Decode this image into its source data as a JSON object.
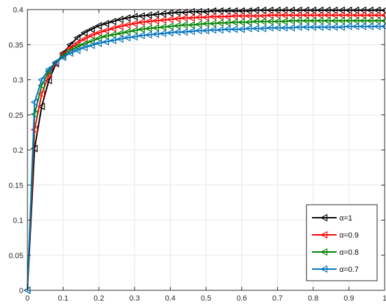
{
  "chart_data": {
    "type": "line",
    "title": "",
    "xlabel": "",
    "ylabel": "",
    "xlim": [
      0,
      1
    ],
    "ylim": [
      0,
      0.4
    ],
    "grid": true,
    "legend_placement": "bottom-right",
    "x_ticks": [
      "0",
      "0.1",
      "0.2",
      "0.3",
      "0.4",
      "0.5",
      "0.6",
      "0.7",
      "0.8",
      "0.9",
      "1"
    ],
    "y_ticks": [
      "0",
      "0.05",
      "0.1",
      "0.15",
      "0.2",
      "0.25",
      "0.3",
      "0.35",
      "0.4"
    ],
    "marker": "left-triangle",
    "series": [
      {
        "name": "α=1",
        "color": "#000000",
        "y_final": 0.399,
        "y_first": 0.202,
        "rate": 14
      },
      {
        "name": "α=0.9",
        "color": "#ff0000",
        "y_final": 0.392,
        "y_first": 0.229,
        "rate": 14
      },
      {
        "name": "α=0.8",
        "color": "#008000",
        "y_final": 0.384,
        "y_first": 0.251,
        "rate": 14
      },
      {
        "name": "α=0.7",
        "color": "#0072bd",
        "y_final": 0.376,
        "y_first": 0.268,
        "rate": 14
      }
    ],
    "x_points": [
      0,
      0.02,
      0.04,
      0.06,
      0.08,
      0.1,
      0.12,
      0.14,
      0.16,
      0.18,
      0.2,
      0.22,
      0.24,
      0.26,
      0.28,
      0.3,
      0.32,
      0.34,
      0.36,
      0.38,
      0.4,
      0.42,
      0.44,
      0.46,
      0.48,
      0.5,
      0.52,
      0.54,
      0.56,
      0.58,
      0.6,
      0.62,
      0.64,
      0.66,
      0.68,
      0.7,
      0.72,
      0.74,
      0.76,
      0.78,
      0.8,
      0.82,
      0.84,
      0.86,
      0.88,
      0.9,
      0.92,
      0.94,
      0.96,
      0.98,
      1.0
    ],
    "y_values": [
      [
        0,
        0.202,
        0.262,
        0.299,
        0.323,
        0.338,
        0.35,
        0.36,
        0.367,
        0.372,
        0.377,
        0.38,
        0.383,
        0.386,
        0.388,
        0.39,
        0.391,
        0.392,
        0.393,
        0.394,
        0.395,
        0.396,
        0.396,
        0.397,
        0.397,
        0.397,
        0.398,
        0.398,
        0.398,
        0.398,
        0.398,
        0.398,
        0.399,
        0.399,
        0.399,
        0.399,
        0.399,
        0.399,
        0.399,
        0.399,
        0.399,
        0.399,
        0.399,
        0.399,
        0.399,
        0.399,
        0.399,
        0.399,
        0.399,
        0.399,
        0.399
      ],
      [
        0,
        0.229,
        0.28,
        0.307,
        0.324,
        0.336,
        0.345,
        0.352,
        0.358,
        0.363,
        0.367,
        0.37,
        0.373,
        0.376,
        0.378,
        0.38,
        0.382,
        0.383,
        0.384,
        0.385,
        0.386,
        0.387,
        0.388,
        0.388,
        0.389,
        0.389,
        0.39,
        0.39,
        0.39,
        0.391,
        0.391,
        0.391,
        0.391,
        0.391,
        0.392,
        0.392,
        0.392,
        0.392,
        0.392,
        0.392,
        0.392,
        0.392,
        0.392,
        0.392,
        0.392,
        0.392,
        0.392,
        0.392,
        0.392,
        0.392,
        0.392
      ],
      [
        0,
        0.251,
        0.292,
        0.312,
        0.325,
        0.334,
        0.341,
        0.347,
        0.351,
        0.355,
        0.359,
        0.362,
        0.364,
        0.366,
        0.368,
        0.37,
        0.372,
        0.373,
        0.374,
        0.375,
        0.376,
        0.377,
        0.378,
        0.378,
        0.379,
        0.38,
        0.38,
        0.381,
        0.381,
        0.382,
        0.382,
        0.382,
        0.383,
        0.383,
        0.383,
        0.383,
        0.383,
        0.384,
        0.384,
        0.384,
        0.384,
        0.384,
        0.384,
        0.384,
        0.384,
        0.384,
        0.384,
        0.384,
        0.384,
        0.384,
        0.384
      ],
      [
        0,
        0.268,
        0.3,
        0.315,
        0.325,
        0.332,
        0.338,
        0.342,
        0.346,
        0.349,
        0.352,
        0.354,
        0.356,
        0.358,
        0.36,
        0.361,
        0.363,
        0.364,
        0.365,
        0.366,
        0.367,
        0.368,
        0.368,
        0.369,
        0.37,
        0.37,
        0.371,
        0.371,
        0.372,
        0.372,
        0.372,
        0.373,
        0.373,
        0.373,
        0.374,
        0.374,
        0.374,
        0.374,
        0.375,
        0.375,
        0.375,
        0.375,
        0.375,
        0.375,
        0.375,
        0.376,
        0.376,
        0.376,
        0.376,
        0.376,
        0.376
      ]
    ]
  }
}
